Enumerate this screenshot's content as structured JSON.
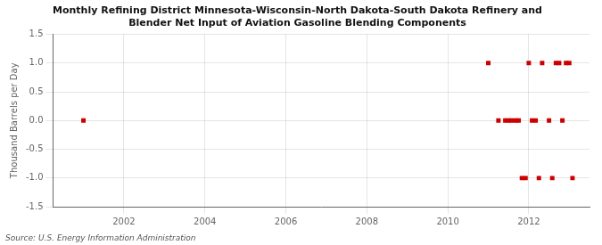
{
  "chart_data": {
    "type": "scatter",
    "title": "Monthly Refining District Minnesota-Wisconsin-North Dakota-South Dakota Refinery and\nBlender Net Input of Aviation Gasoline Blending Components",
    "ylabel": "Thousand Barrels per Day",
    "source": "Source: U.S. Energy Information Administration",
    "x": [
      2001.0,
      2011.0,
      2011.25,
      2011.42,
      2011.5,
      2011.58,
      2011.67,
      2011.75,
      2011.83,
      2011.92,
      2012.0,
      2012.08,
      2012.17,
      2012.25,
      2012.33,
      2012.5,
      2012.58,
      2012.67,
      2012.75,
      2012.83,
      2012.92,
      2013.0,
      2013.08
    ],
    "values": [
      0.0,
      1.0,
      0.0,
      0.0,
      0.0,
      0.0,
      0.0,
      0.0,
      -1.0,
      -1.0,
      1.0,
      0.0,
      0.0,
      -1.0,
      1.0,
      0.0,
      -1.0,
      1.0,
      1.0,
      0.0,
      1.0,
      1.0,
      -1.0
    ],
    "color": "#cc0000",
    "marker": "square",
    "xlim": [
      2000.25,
      2013.5
    ],
    "xticks": [
      2002,
      2004,
      2006,
      2008,
      2010,
      2012
    ],
    "ylim": [
      -1.5,
      1.5
    ],
    "yticks": [
      -1.5,
      {
        "value": -1.0,
        "label": "-1.0"
      },
      -0.5,
      {
        "value": 0.0,
        "label": "0.0"
      },
      0.5,
      {
        "value": 1.0,
        "label": "1.0"
      },
      1.5
    ],
    "grid": true
  }
}
